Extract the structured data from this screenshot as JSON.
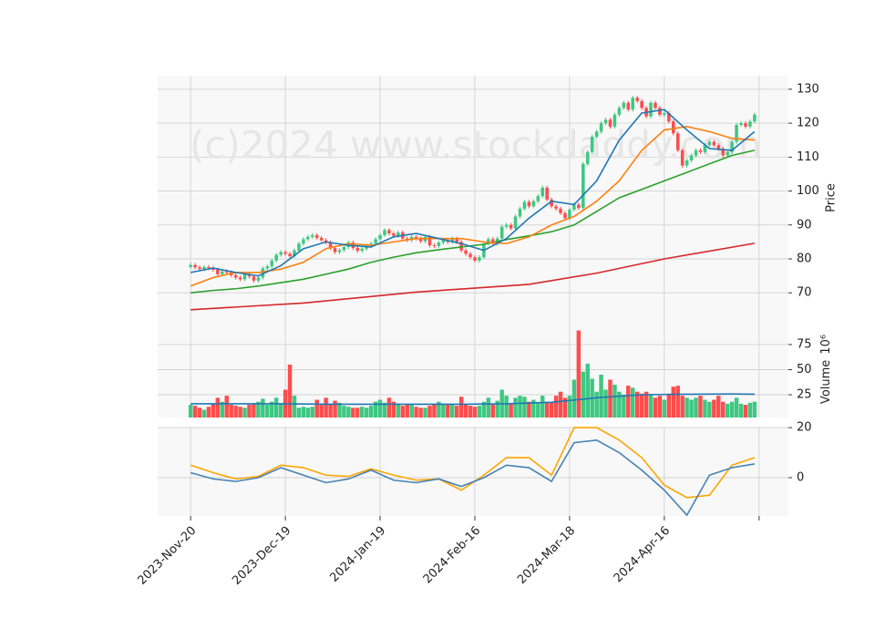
{
  "chart_data": [
    {
      "type": "candlestick",
      "ylabel": "Price",
      "watermark": "(c)2024 www.stockdaddy.com",
      "up_color": "#3ec882",
      "down_color": "#fe4d4d",
      "grid": true,
      "ylim": [
        62,
        134
      ],
      "yticks": [
        70,
        80,
        90,
        100,
        110,
        120,
        130
      ],
      "open": [
        77.6,
        78.2,
        77.5,
        77.0,
        77.6,
        77.3,
        76.8,
        75.5,
        76.3,
        76.0,
        75.2,
        74.5,
        74.0,
        75.5,
        74.8,
        73.6,
        74.5,
        77.2,
        77.8,
        79.5,
        81.2,
        82.0,
        81.5,
        80.8,
        82.5,
        84.5,
        85.8,
        86.5,
        87.0,
        86.2,
        85.5,
        84.8,
        83.2,
        82.0,
        82.6,
        83.5,
        84.8,
        83.2,
        82.4,
        83.0,
        83.8,
        84.5,
        85.8,
        87.0,
        88.5,
        87.5,
        86.8,
        87.8,
        86.0,
        85.5,
        86.5,
        86.0,
        85.2,
        86.5,
        84.0,
        83.8,
        84.8,
        85.5,
        85.0,
        86.0,
        85.0,
        82.5,
        81.5,
        80.5,
        79.5,
        80.5,
        84.5,
        85.8,
        84.5,
        86.0,
        89.5,
        90.0,
        89.0,
        92.5,
        94.8,
        96.8,
        95.5,
        97.0,
        98.5,
        101.0,
        97.5,
        95.5,
        94.8,
        93.5,
        92.0,
        94.5,
        96.0,
        95.0,
        108.0,
        111.5,
        116.0,
        117.5,
        120.0,
        121.0,
        119.0,
        122.5,
        124.5,
        126.0,
        124.0,
        127.5,
        126.5,
        124.5,
        122.0,
        126.0,
        124.5,
        122.5,
        123.0,
        120.5,
        117.0,
        112.0,
        107.5,
        109.0,
        110.5,
        112.0,
        111.5,
        113.5,
        114.5,
        113.5,
        112.5,
        110.5,
        111.5,
        114.5,
        119.5,
        120.0,
        119.0,
        120.5
      ],
      "high": [
        78.8,
        78.8,
        78.1,
        78.2,
        78.2,
        77.9,
        77.4,
        76.9,
        76.9,
        76.6,
        75.8,
        75.1,
        76.1,
        76.1,
        75.4,
        75.1,
        77.8,
        78.4,
        80.1,
        81.8,
        82.6,
        82.6,
        82.1,
        83.1,
        85.1,
        86.4,
        87.1,
        87.6,
        87.6,
        86.8,
        86.1,
        85.4,
        83.8,
        83.2,
        84.1,
        85.4,
        85.4,
        83.8,
        83.6,
        84.4,
        85.1,
        86.4,
        87.6,
        89.1,
        89.1,
        88.1,
        88.4,
        88.4,
        86.6,
        87.1,
        87.1,
        86.6,
        87.1,
        87.1,
        84.6,
        85.4,
        86.1,
        86.1,
        86.6,
        86.6,
        85.6,
        83.1,
        82.1,
        81.1,
        81.1,
        85.1,
        86.4,
        86.4,
        86.6,
        90.1,
        90.6,
        90.6,
        93.1,
        95.4,
        97.4,
        97.4,
        97.6,
        99.1,
        101.6,
        101.6,
        98.1,
        96.1,
        95.4,
        94.1,
        95.1,
        96.6,
        96.6,
        108.6,
        112.1,
        116.6,
        118.1,
        120.6,
        121.6,
        121.6,
        123.1,
        125.1,
        126.6,
        126.6,
        128.1,
        128.1,
        127.1,
        125.1,
        126.6,
        126.6,
        125.1,
        123.6,
        123.6,
        121.1,
        117.6,
        112.6,
        109.6,
        111.1,
        112.6,
        112.6,
        114.1,
        115.1,
        115.1,
        114.1,
        113.1,
        112.1,
        115.1,
        120.1,
        120.6,
        120.6,
        121.1,
        123.1
      ],
      "low": [
        77.0,
        76.9,
        76.4,
        76.4,
        76.7,
        76.2,
        74.9,
        74.9,
        75.4,
        74.6,
        73.9,
        73.4,
        73.4,
        74.2,
        73.0,
        73.0,
        73.9,
        76.6,
        77.2,
        78.9,
        80.6,
        80.9,
        80.2,
        80.2,
        81.9,
        83.9,
        85.2,
        85.9,
        85.6,
        84.9,
        84.2,
        82.6,
        81.4,
        81.4,
        82.0,
        82.9,
        82.6,
        81.8,
        81.8,
        82.4,
        83.2,
        83.9,
        85.2,
        86.4,
        86.9,
        86.2,
        86.2,
        85.4,
        84.9,
        84.9,
        85.4,
        84.6,
        84.6,
        83.4,
        83.2,
        83.2,
        84.2,
        84.4,
        84.4,
        84.4,
        81.9,
        80.9,
        79.9,
        78.9,
        78.9,
        79.9,
        83.9,
        83.9,
        83.9,
        85.4,
        88.9,
        88.4,
        88.4,
        91.9,
        94.2,
        94.9,
        94.9,
        96.4,
        97.9,
        96.9,
        94.9,
        94.2,
        92.9,
        91.4,
        91.4,
        93.9,
        94.4,
        94.4,
        107.4,
        110.9,
        115.4,
        116.9,
        119.4,
        118.4,
        118.4,
        121.9,
        123.9,
        123.4,
        123.4,
        125.9,
        123.9,
        121.4,
        121.4,
        123.9,
        121.9,
        121.9,
        119.9,
        116.4,
        111.4,
        106.9,
        106.9,
        108.4,
        109.9,
        110.9,
        110.9,
        112.9,
        112.9,
        111.9,
        109.9,
        109.9,
        110.9,
        113.9,
        118.9,
        118.4,
        118.4,
        119.9
      ],
      "close": [
        78.2,
        77.5,
        77.0,
        77.6,
        77.3,
        76.8,
        75.5,
        76.3,
        76.0,
        75.2,
        74.5,
        74.0,
        75.5,
        74.8,
        73.6,
        74.5,
        77.2,
        77.8,
        79.5,
        81.2,
        82.0,
        81.5,
        80.8,
        82.5,
        84.5,
        85.8,
        86.5,
        87.0,
        86.2,
        85.5,
        84.8,
        83.2,
        82.0,
        82.6,
        83.5,
        84.8,
        83.2,
        82.4,
        83.0,
        83.8,
        84.5,
        85.8,
        87.0,
        88.5,
        87.5,
        86.8,
        87.8,
        86.0,
        85.5,
        86.5,
        86.0,
        85.2,
        86.5,
        84.0,
        83.8,
        84.8,
        85.5,
        85.0,
        86.0,
        85.0,
        82.5,
        81.5,
        80.5,
        79.5,
        80.5,
        84.5,
        85.8,
        84.5,
        86.0,
        89.5,
        90.0,
        89.0,
        92.5,
        94.8,
        96.8,
        95.5,
        97.0,
        98.5,
        101.0,
        97.5,
        95.5,
        94.8,
        93.5,
        92.0,
        94.5,
        96.0,
        95.0,
        108.0,
        111.5,
        116.0,
        117.5,
        120.0,
        121.0,
        119.0,
        122.5,
        124.5,
        126.0,
        124.0,
        127.5,
        126.5,
        124.5,
        122.0,
        126.0,
        124.5,
        122.5,
        123.0,
        120.5,
        117.0,
        112.0,
        107.5,
        109.0,
        110.5,
        112.0,
        111.5,
        113.5,
        114.5,
        113.5,
        112.5,
        110.5,
        111.5,
        114.5,
        119.5,
        120.0,
        119.0,
        120.5,
        122.5
      ],
      "series": [
        {
          "color": "#d62728",
          "x": [
            0,
            25,
            50,
            75,
            90,
            105,
            125
          ],
          "values": [
            65,
            67,
            70.2,
            72.5,
            75.8,
            80,
            84.6
          ]
        },
        {
          "color": "#2ca02c",
          "x": [
            0,
            5,
            10,
            15,
            20,
            25,
            30,
            35,
            40,
            45,
            50,
            55,
            60,
            65,
            70,
            75,
            80,
            85,
            90,
            95,
            100,
            105,
            110,
            115,
            120,
            125
          ],
          "values": [
            70,
            70.7,
            71.2,
            72,
            73,
            74,
            75.5,
            77,
            79,
            80.5,
            81.8,
            82.7,
            83.5,
            84.3,
            85.7,
            86.8,
            88,
            90,
            94,
            98,
            100.5,
            103,
            105.5,
            108,
            110.5,
            112
          ]
        },
        {
          "color": "#ff7f0e",
          "x": [
            0,
            5,
            10,
            15,
            20,
            25,
            30,
            35,
            40,
            45,
            50,
            55,
            60,
            65,
            70,
            75,
            80,
            85,
            90,
            95,
            100,
            105,
            110,
            115,
            120,
            125
          ],
          "values": [
            72,
            74.5,
            76,
            76,
            77,
            79,
            83,
            84.5,
            84,
            85,
            86,
            86,
            86,
            85,
            84.5,
            86.5,
            90,
            92.5,
            97,
            103,
            112,
            118,
            119,
            117.5,
            115.5,
            115
          ]
        },
        {
          "color": "#1f77b4",
          "x": [
            0,
            5,
            10,
            15,
            20,
            25,
            30,
            35,
            40,
            45,
            50,
            55,
            60,
            65,
            70,
            75,
            80,
            85,
            90,
            95,
            100,
            105,
            110,
            115,
            120,
            125
          ],
          "values": [
            76,
            77.3,
            76,
            75,
            78,
            83,
            85,
            84,
            83.5,
            86.5,
            87.5,
            86,
            84.5,
            82.5,
            86,
            92,
            97,
            96,
            103,
            115,
            123,
            124,
            118,
            112.5,
            112,
            117.5
          ]
        }
      ]
    },
    {
      "type": "bar",
      "ylabel": "Volume",
      "ylabel_scale": "10⁶",
      "grid": true,
      "ylim": [
        2.3,
        99.5
      ],
      "yticks": [
        25,
        50,
        75
      ],
      "values": [
        15,
        14,
        12,
        10,
        13,
        16,
        22,
        18,
        24,
        15,
        14,
        13,
        12,
        15,
        16,
        18,
        21,
        15,
        18,
        22,
        16,
        30,
        55,
        24,
        12,
        13,
        12,
        13,
        20,
        15,
        22,
        16,
        19,
        17,
        14,
        13,
        12,
        12,
        13,
        12,
        14,
        18,
        20,
        17,
        22,
        18,
        16,
        14,
        15,
        15,
        13,
        12,
        12,
        14,
        16,
        18,
        16,
        15,
        15,
        14,
        23,
        16,
        14,
        13,
        14,
        18,
        22,
        15,
        19,
        30,
        24,
        16,
        22,
        24,
        23,
        18,
        20,
        17,
        24,
        18,
        17,
        24,
        28,
        22,
        24,
        40,
        89,
        48,
        56,
        41,
        28,
        45,
        30,
        40,
        35,
        28,
        25,
        34,
        32,
        28,
        26,
        28,
        25,
        22,
        24,
        20,
        26,
        33,
        34,
        24,
        22,
        20,
        22,
        24,
        20,
        18,
        20,
        24,
        18,
        16,
        18,
        22,
        16,
        15,
        17,
        18
      ],
      "series": [
        {
          "color": "#1f77b4",
          "x": [
            0,
            10,
            20,
            30,
            40,
            50,
            60,
            70,
            80,
            90,
            100,
            110,
            120,
            125
          ],
          "values": [
            16,
            16,
            16,
            15.5,
            15.5,
            15.5,
            15.5,
            16,
            17.5,
            22,
            25,
            25.5,
            25.8,
            25.5
          ]
        }
      ]
    },
    {
      "type": "line",
      "grid": true,
      "ylim": [
        -15.3,
        20.4
      ],
      "yticks": [
        0,
        20
      ],
      "xlim": [
        -7.3,
        132.5
      ],
      "xticks": [
        {
          "value": 0,
          "label": "2023-Nov-20"
        },
        {
          "value": 21,
          "label": "2023-Dec-19"
        },
        {
          "value": 42,
          "label": "2024-Jan-19"
        },
        {
          "value": 63,
          "label": "2024-Feb-16"
        },
        {
          "value": 84,
          "label": "2024-Mar-18"
        },
        {
          "value": 105,
          "label": "2024-Apr-16"
        },
        {
          "value": 126,
          "label": null
        }
      ],
      "series": [
        {
          "color": "#ffa500",
          "x": [
            0,
            5,
            10,
            15,
            20,
            25,
            30,
            35,
            40,
            45,
            50,
            55,
            60,
            65,
            70,
            75,
            80,
            85,
            90,
            95,
            100,
            105,
            110,
            115,
            120,
            125
          ],
          "values": [
            5,
            2,
            -0.5,
            0.5,
            5,
            4,
            1,
            0.5,
            3.5,
            1,
            -1,
            -0.5,
            -5,
            1,
            8,
            8,
            1,
            20,
            20,
            15,
            8,
            -3,
            -8,
            -7,
            5,
            8
          ]
        },
        {
          "color": "#4682b4",
          "x": [
            0,
            5,
            10,
            15,
            20,
            25,
            30,
            35,
            40,
            45,
            50,
            55,
            60,
            65,
            70,
            75,
            80,
            85,
            90,
            95,
            100,
            105,
            110,
            115,
            120,
            125
          ],
          "values": [
            2,
            -0.5,
            -1.5,
            0,
            4,
            1,
            -2,
            -0.5,
            3,
            -1,
            -2,
            -0.5,
            -3.5,
            0,
            5,
            4,
            -1.5,
            14,
            15,
            10,
            3,
            -5,
            -15,
            1,
            4,
            5.5
          ]
        }
      ]
    }
  ]
}
